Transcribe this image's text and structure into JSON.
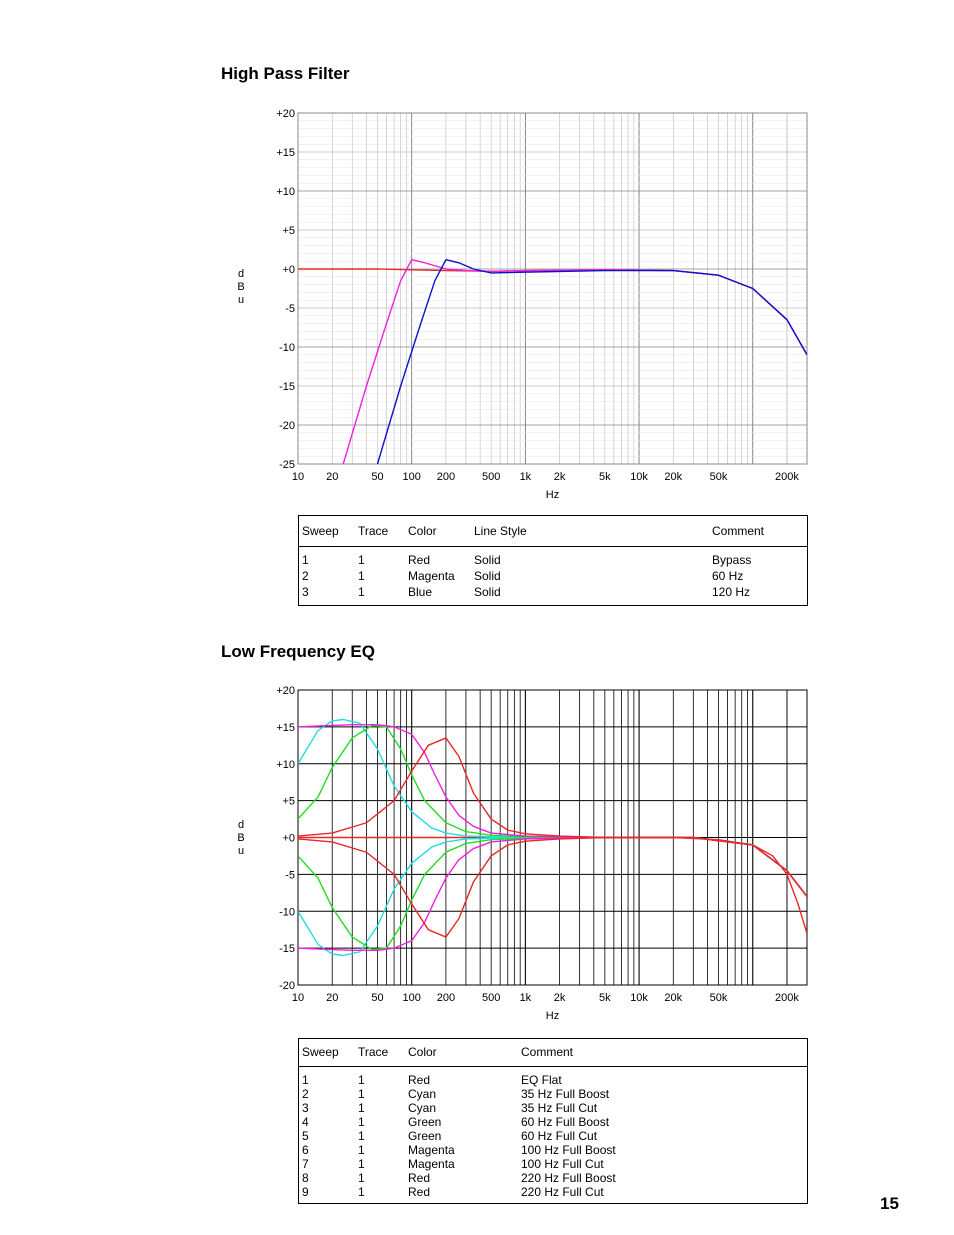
{
  "page_number": "15",
  "sections": [
    {
      "title": "High Pass Filter"
    },
    {
      "title": "Low Frequency EQ"
    }
  ],
  "chart_data": [
    {
      "type": "line",
      "title": "High Pass Filter",
      "xlabel": "Hz",
      "ylabel": "dBu",
      "x_scale": "log",
      "xlim": [
        10,
        300000
      ],
      "ylim": [
        -25,
        20
      ],
      "x_ticks": [
        10,
        20,
        50,
        100,
        200,
        500,
        1000,
        2000,
        5000,
        10000,
        20000,
        50000,
        200000
      ],
      "x_tick_labels": [
        "10",
        "20",
        "50",
        "100",
        "200",
        "500",
        "1k",
        "2k",
        "5k",
        "10k",
        "20k",
        "50k",
        "200k"
      ],
      "y_ticks": [
        20,
        15,
        10,
        5,
        0,
        -5,
        -10,
        -15,
        -20,
        -25
      ],
      "y_tick_labels": [
        "+20",
        "+15",
        "+10",
        "+5",
        "+0",
        "-5",
        "-10",
        "-15",
        "-20",
        "-25"
      ],
      "grid": true,
      "series": [
        {
          "color": "#e8282a",
          "x": [
            10,
            20,
            50,
            100,
            200,
            500,
            1000,
            5000,
            20000,
            50000,
            100000,
            200000,
            300000
          ],
          "y": [
            0.0,
            0.0,
            0.0,
            -0.1,
            -0.2,
            -0.3,
            -0.2,
            -0.1,
            -0.2,
            -0.8,
            -2.5,
            -6.5,
            -11.0
          ]
        },
        {
          "color": "#ee22dd",
          "x": [
            25,
            40,
            60,
            80,
            100,
            130,
            200,
            300,
            500,
            1000,
            5000,
            20000,
            50000,
            100000,
            200000,
            300000
          ],
          "y": [
            -25,
            -15.0,
            -7.0,
            -1.5,
            1.2,
            0.8,
            0.0,
            -0.2,
            -0.3,
            -0.2,
            -0.1,
            -0.2,
            -0.8,
            -2.5,
            -6.5,
            -11.0
          ]
        },
        {
          "color": "#1010cc",
          "x": [
            50,
            80,
            120,
            160,
            200,
            260,
            350,
            500,
            1000,
            5000,
            20000,
            50000,
            100000,
            200000,
            300000
          ],
          "y": [
            -25,
            -15.0,
            -7.0,
            -1.5,
            1.2,
            0.8,
            0.0,
            -0.5,
            -0.4,
            -0.2,
            -0.2,
            -0.8,
            -2.5,
            -6.5,
            -11.0
          ]
        }
      ]
    },
    {
      "type": "line",
      "title": "Low Frequency EQ",
      "xlabel": "Hz",
      "ylabel": "dBu",
      "x_scale": "log",
      "xlim": [
        10,
        300000
      ],
      "ylim": [
        -20,
        20
      ],
      "x_ticks": [
        10,
        20,
        50,
        100,
        200,
        500,
        1000,
        2000,
        5000,
        10000,
        20000,
        50000,
        200000
      ],
      "x_tick_labels": [
        "10",
        "20",
        "50",
        "100",
        "200",
        "500",
        "1k",
        "2k",
        "5k",
        "10k",
        "20k",
        "50k",
        "200k"
      ],
      "y_ticks": [
        20,
        15,
        10,
        5,
        0,
        -5,
        -10,
        -15,
        -20
      ],
      "y_tick_labels": [
        "+20",
        "+15",
        "+10",
        "+5",
        "+0",
        "-5",
        "-10",
        "-15",
        "-20"
      ],
      "grid": true,
      "series": [
        {
          "color": "#e8282a",
          "x": [
            10,
            100,
            500,
            1000,
            5000,
            20000,
            50000,
            100000,
            150000,
            200000,
            250000,
            300000
          ],
          "y": [
            0.0,
            0.0,
            0.0,
            0.0,
            0.0,
            0.0,
            -0.3,
            -1.0,
            -2.5,
            -5.0,
            -9.0,
            -13.0
          ]
        },
        {
          "color": "#22dddd",
          "x": [
            10,
            15,
            20,
            25,
            35,
            50,
            70,
            100,
            150,
            200,
            300,
            500,
            1000,
            5000,
            30000,
            100000,
            200000,
            300000
          ],
          "y": [
            10.0,
            14.5,
            15.8,
            16.0,
            15.5,
            12.0,
            7.0,
            3.5,
            1.3,
            0.6,
            0.2,
            0.1,
            0.0,
            0.0,
            0.0,
            -1.0,
            -4.5,
            -8.0
          ]
        },
        {
          "color": "#22dddd",
          "x": [
            10,
            15,
            20,
            25,
            35,
            50,
            70,
            100,
            150,
            200,
            300,
            500,
            1000,
            5000,
            30000,
            100000,
            200000,
            300000
          ],
          "y": [
            -10.0,
            -14.5,
            -15.8,
            -16.0,
            -15.5,
            -12.0,
            -7.0,
            -3.5,
            -1.3,
            -0.6,
            -0.2,
            -0.1,
            0.0,
            0.0,
            0.0,
            -1.0,
            -4.5,
            -8.0
          ]
        },
        {
          "color": "#22dd22",
          "x": [
            10,
            15,
            20,
            30,
            45,
            60,
            80,
            100,
            130,
            200,
            300,
            500,
            1000,
            5000,
            30000,
            100000,
            200000,
            300000
          ],
          "y": [
            2.5,
            5.5,
            9.5,
            13.5,
            15.2,
            15.0,
            12.0,
            8.5,
            5.0,
            2.0,
            0.8,
            0.3,
            0.1,
            0.0,
            0.0,
            -1.0,
            -4.5,
            -8.0
          ]
        },
        {
          "color": "#22dd22",
          "x": [
            10,
            15,
            20,
            30,
            45,
            60,
            80,
            100,
            130,
            200,
            300,
            500,
            1000,
            5000,
            30000,
            100000,
            200000,
            300000
          ],
          "y": [
            -2.5,
            -5.5,
            -9.5,
            -13.5,
            -15.2,
            -15.0,
            -12.0,
            -8.5,
            -5.0,
            -2.0,
            -0.8,
            -0.3,
            -0.1,
            0.0,
            0.0,
            -1.0,
            -4.5,
            -8.0
          ]
        },
        {
          "color": "#ee22dd",
          "x": [
            10,
            20,
            30,
            50,
            70,
            100,
            130,
            160,
            200,
            260,
            350,
            500,
            1000,
            5000,
            30000,
            100000,
            200000,
            300000
          ],
          "y": [
            15.0,
            15.2,
            15.3,
            15.3,
            15.0,
            14.0,
            11.5,
            8.5,
            5.5,
            3.0,
            1.5,
            0.6,
            0.2,
            0.0,
            0.0,
            -1.0,
            -4.5,
            -8.0
          ]
        },
        {
          "color": "#ee22dd",
          "x": [
            10,
            20,
            30,
            50,
            70,
            100,
            130,
            160,
            200,
            260,
            350,
            500,
            1000,
            5000,
            30000,
            100000,
            200000,
            300000
          ],
          "y": [
            -15.0,
            -15.2,
            -15.3,
            -15.3,
            -15.0,
            -14.0,
            -11.5,
            -8.5,
            -5.5,
            -3.0,
            -1.5,
            -0.6,
            -0.2,
            0.0,
            0.0,
            -1.0,
            -4.5,
            -8.0
          ]
        },
        {
          "color": "#e8282a",
          "x": [
            10,
            20,
            40,
            70,
            100,
            140,
            200,
            260,
            350,
            500,
            700,
            1000,
            2000,
            5000,
            30000,
            100000,
            200000,
            300000
          ],
          "y": [
            0.2,
            0.6,
            2.0,
            5.0,
            9.0,
            12.5,
            13.5,
            11.0,
            6.0,
            2.5,
            1.0,
            0.5,
            0.2,
            0.0,
            0.0,
            -1.0,
            -4.5,
            -8.0
          ]
        },
        {
          "color": "#e8282a",
          "x": [
            10,
            20,
            40,
            70,
            100,
            140,
            200,
            260,
            350,
            500,
            700,
            1000,
            2000,
            5000,
            30000,
            100000,
            200000,
            300000
          ],
          "y": [
            -0.2,
            -0.6,
            -2.0,
            -5.0,
            -9.0,
            -12.5,
            -13.5,
            -11.0,
            -6.0,
            -2.5,
            -1.0,
            -0.5,
            -0.2,
            0.0,
            0.0,
            -1.0,
            -4.5,
            -8.0
          ]
        }
      ]
    }
  ],
  "legend_tables": [
    {
      "headers": [
        "Sweep",
        "Trace",
        "Color",
        "Line Style",
        "Comment"
      ],
      "rows": [
        [
          "1",
          "1",
          "Red",
          "Solid",
          "Bypass"
        ],
        [
          "2",
          "1",
          "Magenta",
          "Solid",
          "60 Hz"
        ],
        [
          "3",
          "1",
          "Blue",
          "Solid",
          "120 Hz"
        ]
      ]
    },
    {
      "headers": [
        "Sweep",
        "Trace",
        "Color",
        "Comment"
      ],
      "rows": [
        [
          "1",
          "1",
          "Red",
          "EQ Flat"
        ],
        [
          "2",
          "1",
          "Cyan",
          "35 Hz Full Boost"
        ],
        [
          "3",
          "1",
          "Cyan",
          "35 Hz Full Cut"
        ],
        [
          "4",
          "1",
          "Green",
          "60 Hz Full Boost"
        ],
        [
          "5",
          "1",
          "Green",
          "60 Hz Full Cut"
        ],
        [
          "6",
          "1",
          "Magenta",
          "100 Hz Full Boost"
        ],
        [
          "7",
          "1",
          "Magenta",
          "100 Hz Full Cut"
        ],
        [
          "8",
          "1",
          "Red",
          "220 Hz Full Boost"
        ],
        [
          "9",
          "1",
          "Red",
          "220 Hz Full Cut"
        ]
      ]
    }
  ]
}
